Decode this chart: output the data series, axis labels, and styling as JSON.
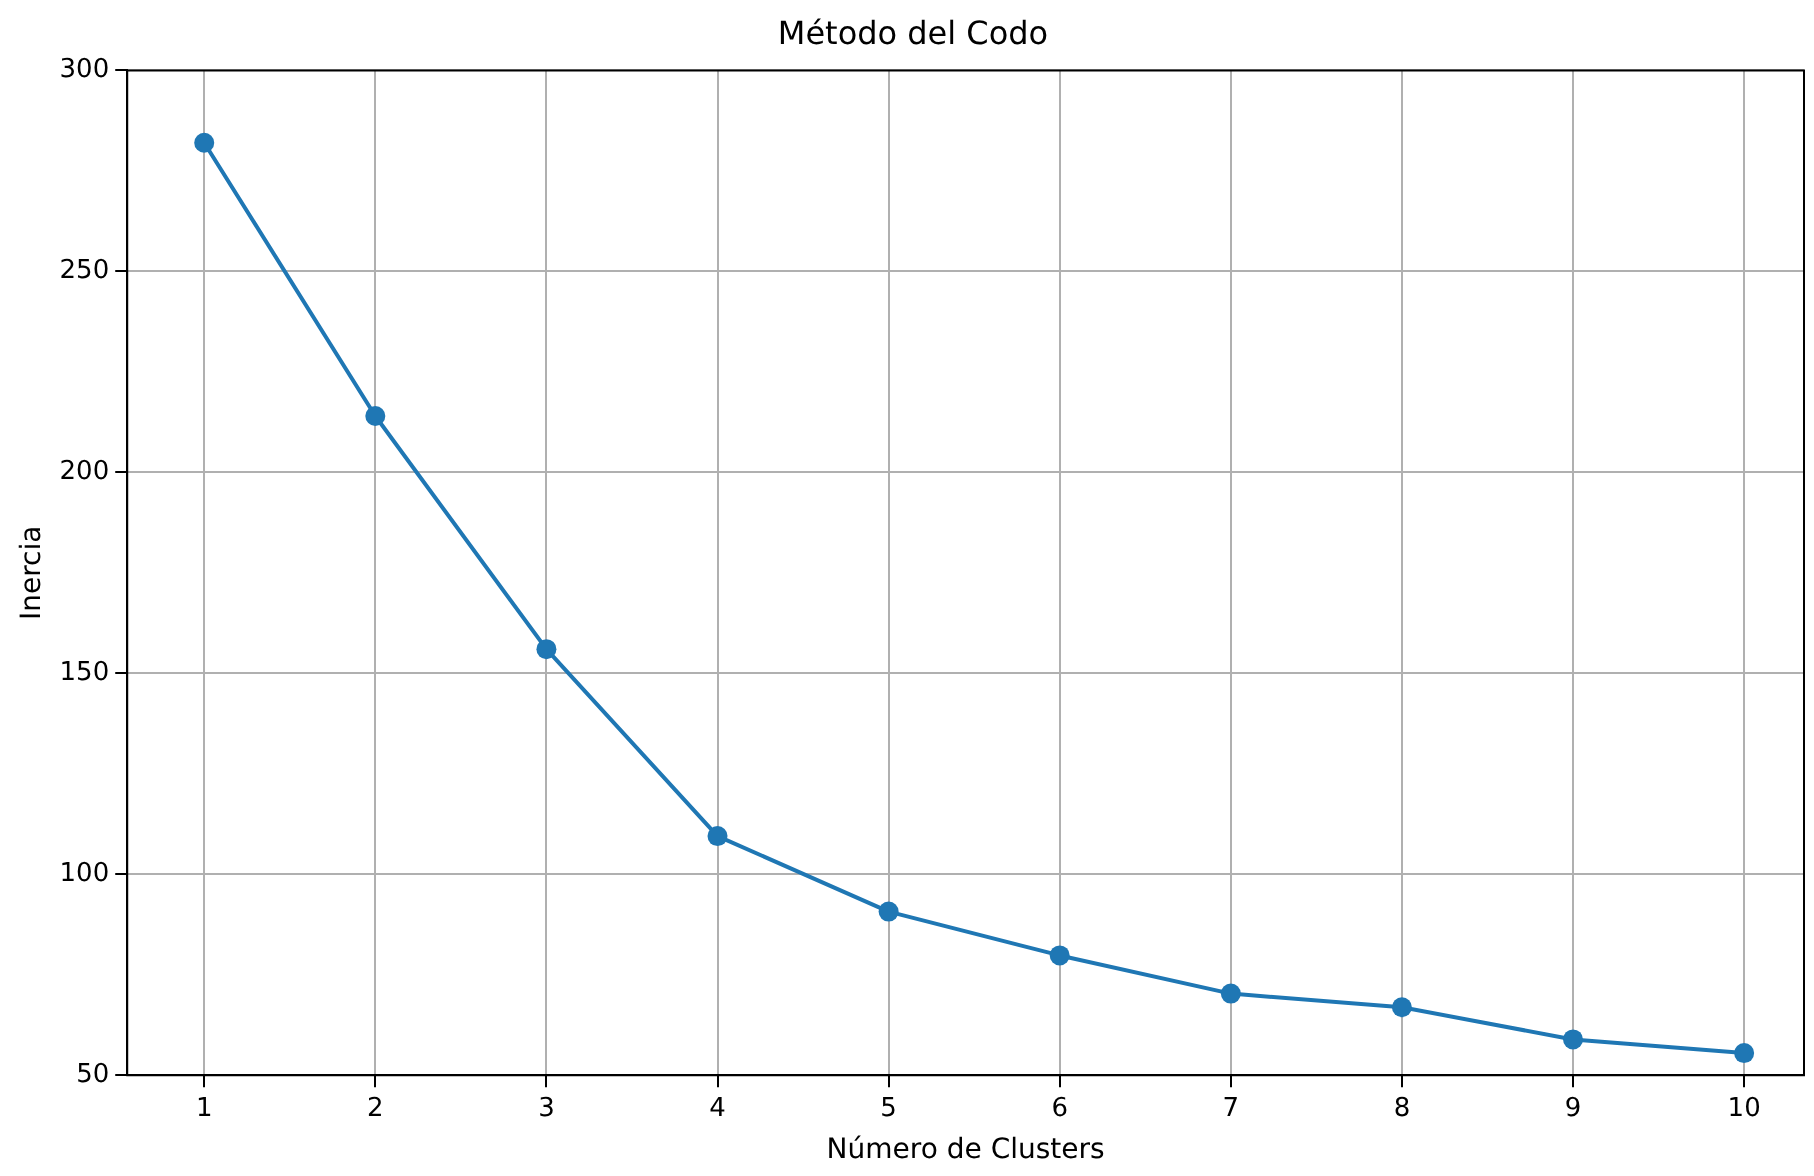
{
  "chart_data": {
    "type": "line",
    "title": "Método del Codo",
    "xlabel": "Número de Clusters",
    "ylabel": "Inercia",
    "x": [
      1,
      2,
      3,
      4,
      5,
      6,
      7,
      8,
      9,
      10
    ],
    "series": [
      {
        "color": "#1f77b4",
        "values": [
          282,
          214,
          156,
          109.5,
          90.7,
          79.8,
          70.3,
          66.9,
          58.9,
          55.5
        ]
      }
    ],
    "xlim": [
      0.55,
      10.35
    ],
    "xticks": [
      1,
      2,
      3,
      4,
      5,
      6,
      7,
      8,
      9,
      10
    ],
    "ylim": [
      50,
      300
    ],
    "yticks": [
      50,
      100,
      150,
      200,
      250,
      300
    ],
    "grid": true,
    "marker": "circle",
    "line_style": "solid",
    "legend": false
  }
}
